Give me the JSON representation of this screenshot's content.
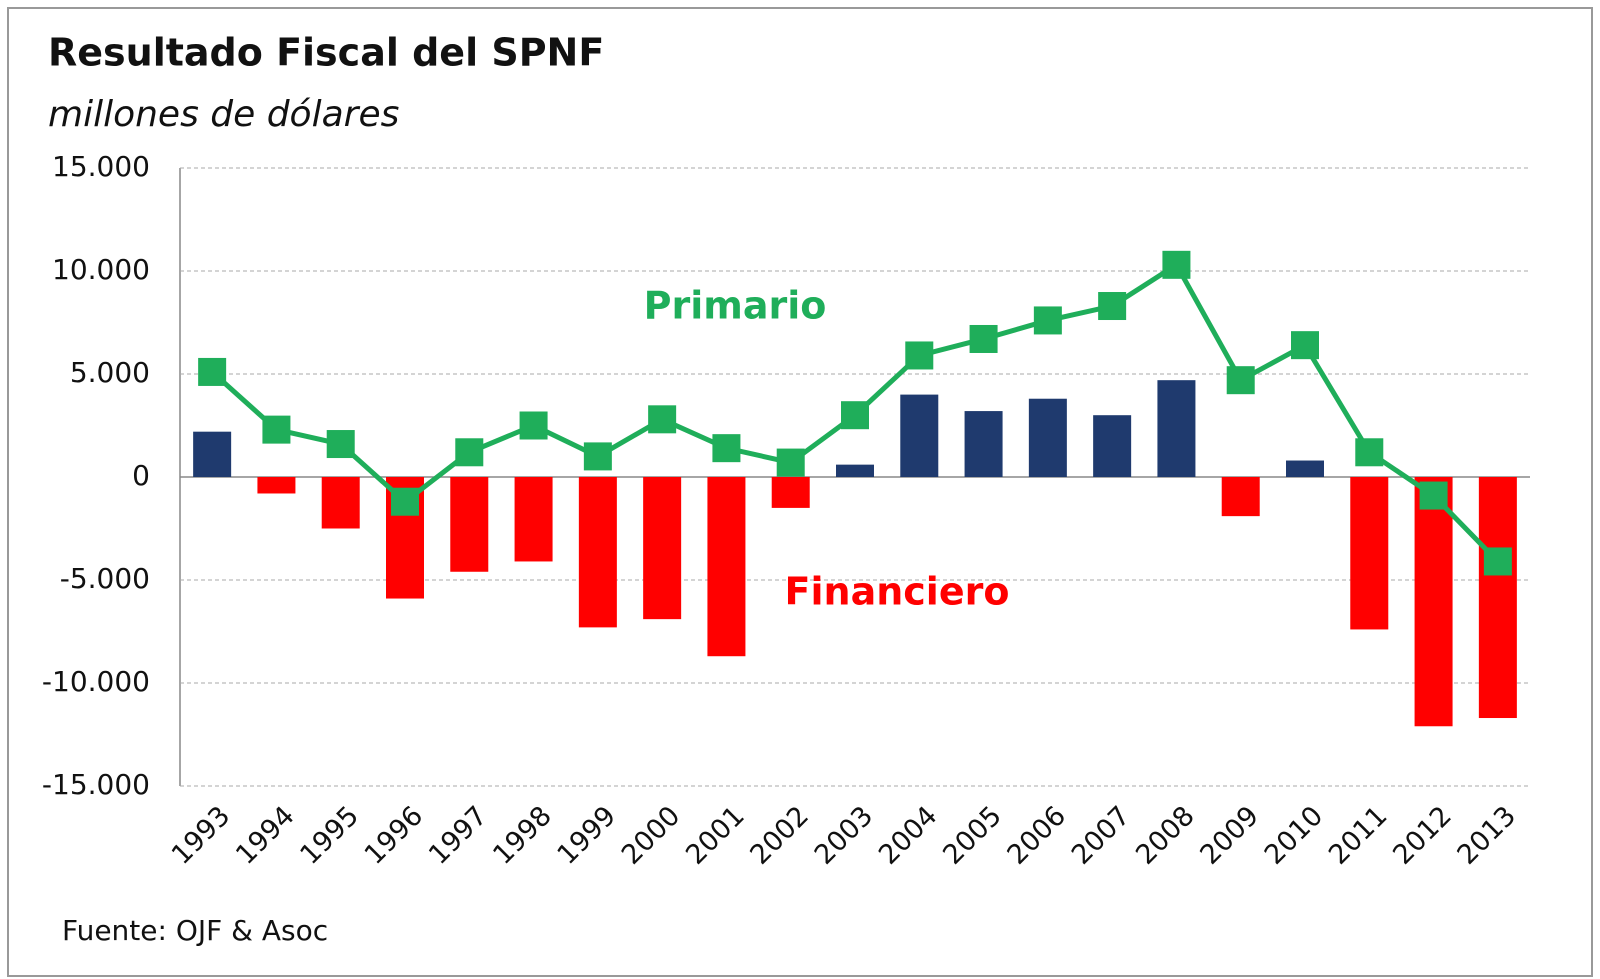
{
  "chart_data": {
    "type": "bar-line",
    "title": "Resultado Fiscal del SPNF",
    "subtitle": "millones de dólares",
    "source": "Fuente: OJF & Asoc",
    "categories": [
      "1993",
      "1994",
      "1995",
      "1996",
      "1997",
      "1998",
      "1999",
      "2000",
      "2001",
      "2002",
      "2003",
      "2004",
      "2005",
      "2006",
      "2007",
      "2008",
      "2009",
      "2010",
      "2011",
      "2012",
      "2013"
    ],
    "series": [
      {
        "name": "Financiero",
        "type": "bar",
        "color": "#ff0000",
        "positive_color": "#1f3a6e",
        "values": [
          2200,
          -800,
          -2500,
          -5900,
          -4600,
          -4100,
          -7300,
          -6900,
          -8700,
          -1500,
          600,
          4000,
          3200,
          3800,
          3000,
          4700,
          -1900,
          800,
          -7400,
          -12100,
          -11700
        ]
      },
      {
        "name": "Primario",
        "type": "line",
        "color": "#1fae5a",
        "values": [
          5100,
          2300,
          1600,
          -1200,
          1200,
          2500,
          1000,
          2800,
          1400,
          700,
          3000,
          5900,
          6700,
          7600,
          8300,
          10300,
          4700,
          6400,
          1200,
          -900,
          -4100
        ]
      }
    ],
    "ylim": [
      -15000,
      15000
    ],
    "yticks": [
      {
        "value": -15000,
        "label": "-15.000"
      },
      {
        "value": -10000,
        "label": "-10.000"
      },
      {
        "value": -5000,
        "label": "-5.000"
      },
      0,
      {
        "value": 5000,
        "label": "5.000"
      },
      {
        "value": 10000,
        "label": "10.000"
      },
      {
        "value": 15000,
        "label": "15.000"
      }
    ],
    "grid": true
  }
}
